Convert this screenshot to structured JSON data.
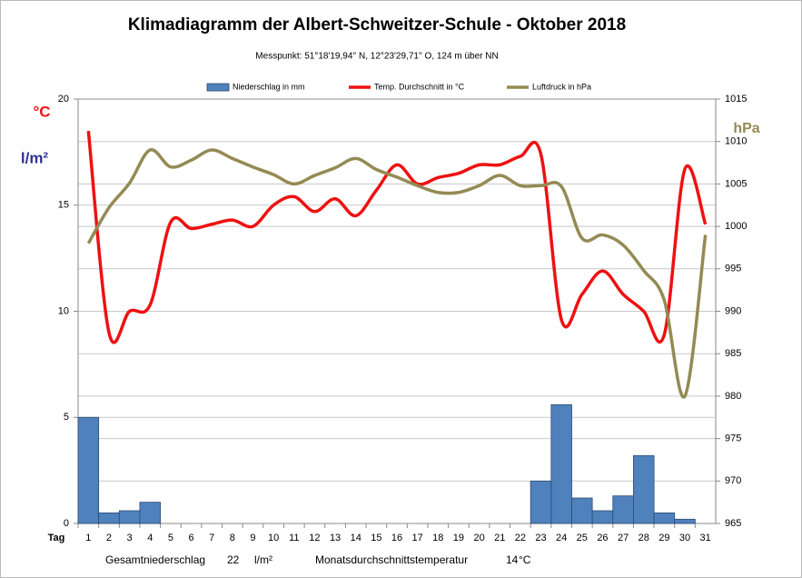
{
  "chart_data": {
    "type": "combo",
    "title": "Klimadiagramm der Albert-Schweitzer-Schule    -   Oktober 2018",
    "subtitle": "Messpunkt:  51°18'19,94'' N,  12°23'29,71'' O,  124 m über NN",
    "x_label": "Tag",
    "y_label_temp": "°C",
    "y_label_precip": "l/m²",
    "y2_label": "hPa",
    "categories": [
      "1",
      "2",
      "3",
      "4",
      "5",
      "6",
      "7",
      "8",
      "9",
      "10",
      "11",
      "12",
      "13",
      "14",
      "15",
      "16",
      "17",
      "18",
      "19",
      "20",
      "21",
      "22",
      "23",
      "24",
      "25",
      "26",
      "27",
      "28",
      "29",
      "30",
      "31"
    ],
    "ylim": [
      0,
      20
    ],
    "yticks": [
      0,
      5,
      10,
      15,
      20
    ],
    "y2lim": [
      965,
      1015
    ],
    "y2ticks": [
      965,
      970,
      975,
      980,
      985,
      990,
      995,
      1000,
      1005,
      1010,
      1015
    ],
    "grid": true,
    "legend": "top",
    "series": [
      {
        "name": "Niederschlag in mm",
        "type": "bar",
        "color": "#4f81bd",
        "axis": "y",
        "values": [
          5.0,
          0.5,
          0.6,
          1.0,
          0,
          0,
          0,
          0,
          0,
          0,
          0,
          0,
          0,
          0,
          0,
          0,
          0,
          0,
          0,
          0,
          0,
          0,
          2.0,
          5.6,
          1.2,
          0.6,
          1.3,
          3.2,
          0.5,
          0.2,
          0
        ]
      },
      {
        "name": "Temp. Durchschnitt in °C",
        "type": "line",
        "color": "#ee1111",
        "axis": "y",
        "values": [
          18.5,
          9.0,
          10.0,
          10.3,
          14.2,
          13.9,
          14.1,
          14.3,
          14.0,
          15.0,
          15.4,
          14.7,
          15.3,
          14.5,
          15.7,
          16.9,
          16.0,
          16.3,
          16.5,
          16.9,
          16.9,
          17.3,
          17.4,
          9.6,
          10.8,
          11.9,
          10.8,
          10.0,
          8.9,
          16.7,
          14.1
        ]
      },
      {
        "name": "Luftdruck in hPa",
        "type": "line",
        "color": "#948a54",
        "axis": "y2",
        "values": [
          998,
          1002.2,
          1005.1,
          1009,
          1007,
          1007.8,
          1009,
          1008,
          1007,
          1006.1,
          1005,
          1006,
          1006.9,
          1008,
          1006.7,
          1005.8,
          1004.8,
          1004,
          1004,
          1004.8,
          1006,
          1004.8,
          1004.8,
          1004.7,
          998.6,
          999,
          997.8,
          994.8,
          991.3,
          980,
          999
        ]
      }
    ],
    "footer": {
      "precip_label": "Gesamtniederschlag",
      "precip_total": 22,
      "precip_unit": "l/m²",
      "temp_label": "Monatsdurchschnittstemperatur",
      "temp_avg": 14,
      "temp_unit": "°C"
    }
  }
}
